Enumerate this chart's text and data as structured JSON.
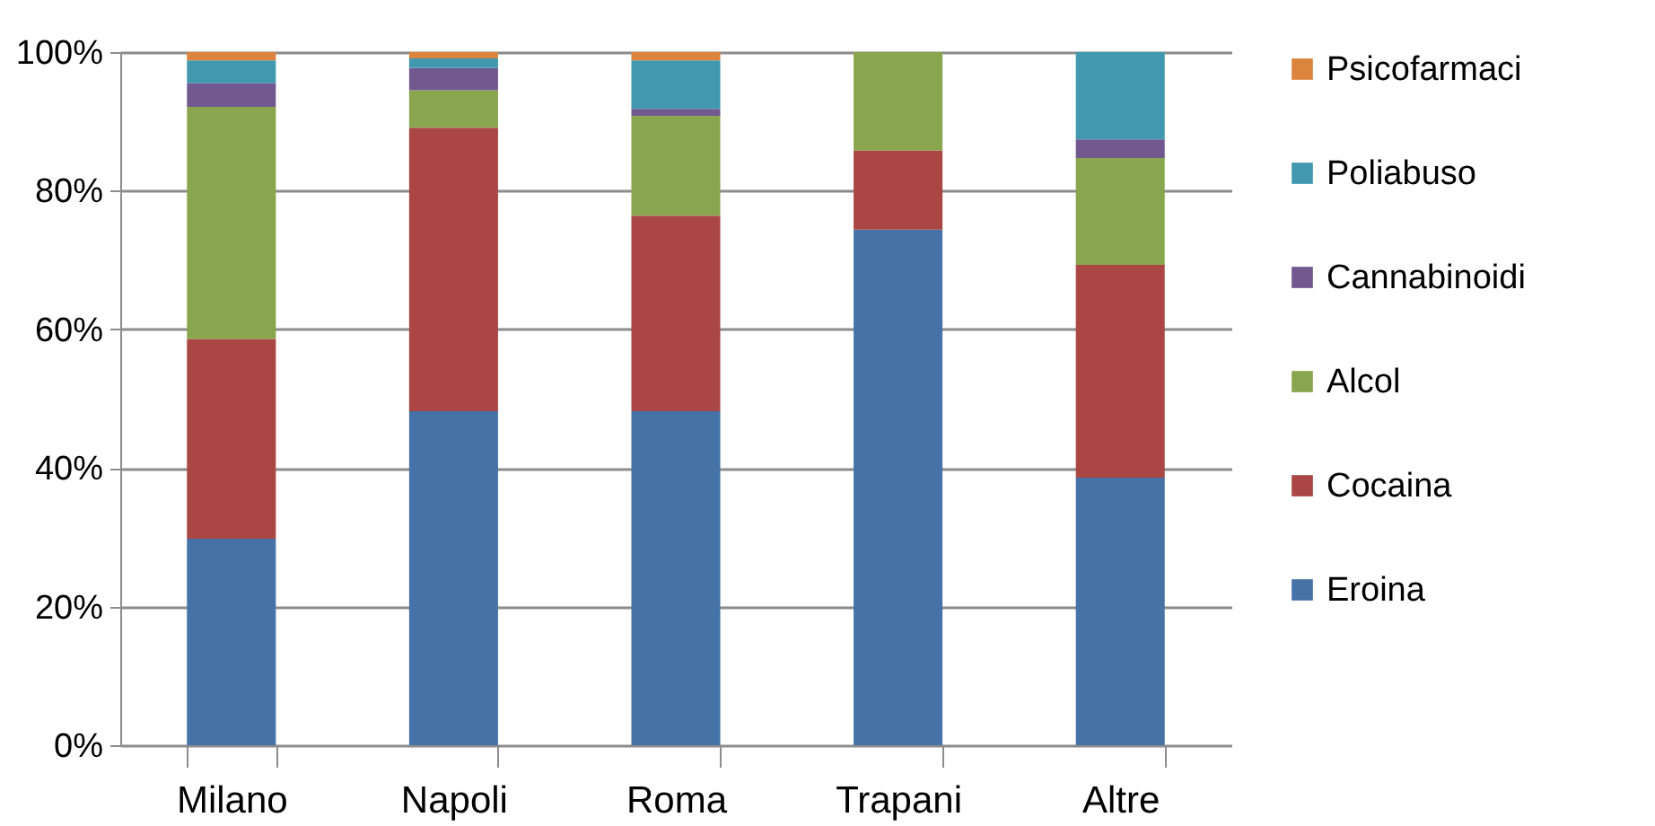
{
  "chart_data": {
    "type": "bar",
    "stacked": true,
    "categories": [
      "Milano",
      "Napoli",
      "Roma",
      "Trapani",
      "Altre"
    ],
    "series": [
      {
        "name": "Eroina",
        "color": "#4572a7",
        "values": [
          29.8,
          48.2,
          48.2,
          74.4,
          38.6
        ]
      },
      {
        "name": "Cocaina",
        "color": "#aa4643",
        "values": [
          28.8,
          40.9,
          28.2,
          11.4,
          30.7
        ]
      },
      {
        "name": "Alcol",
        "color": "#89a54e",
        "values": [
          33.5,
          5.4,
          14.4,
          14.2,
          15.4
        ]
      },
      {
        "name": "Cannabinoidi",
        "color": "#71588f",
        "values": [
          3.4,
          3.2,
          1.0,
          0,
          2.7
        ]
      },
      {
        "name": "Poliabuso",
        "color": "#4198af",
        "values": [
          3.3,
          1.4,
          7.0,
          0,
          12.6
        ]
      },
      {
        "name": "Psicofarmaci",
        "color": "#db843d",
        "values": [
          1.2,
          0.9,
          1.2,
          0,
          0
        ]
      }
    ],
    "ylim": [
      0,
      100
    ],
    "yticks": [
      {
        "value": 0,
        "label": "0%"
      },
      {
        "value": 20,
        "label": "20%"
      },
      {
        "value": 40,
        "label": "40%"
      },
      {
        "value": 60,
        "label": "60%"
      },
      {
        "value": 80,
        "label": "80%"
      },
      {
        "value": 100,
        "label": "100%"
      }
    ],
    "grid": "y",
    "legend": "right"
  }
}
